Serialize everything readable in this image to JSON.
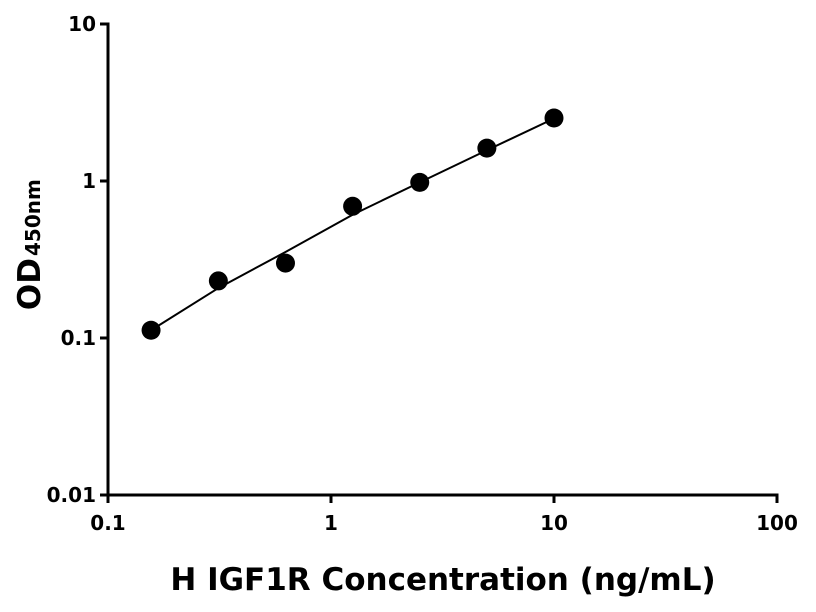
{
  "chart_data": {
    "type": "scatter",
    "x_label": "H IGF1R Concentration (ng/mL)",
    "y_label": "OD",
    "y_label_subscript": "450nm",
    "x": [
      0.156,
      0.3125,
      0.625,
      1.25,
      2.5,
      5,
      10
    ],
    "values": [
      0.112,
      0.231,
      0.3,
      0.69,
      0.98,
      1.62,
      2.52
    ],
    "color": "#000000",
    "fit": {
      "x": [
        0.156,
        0.3125,
        0.625,
        1.25,
        2.5,
        5,
        10
      ],
      "values": [
        0.112,
        0.208,
        0.353,
        0.61,
        0.98,
        1.57,
        2.5
      ],
      "color": "#000000"
    },
    "xscale": "log",
    "yscale": "log",
    "xlim": [
      0.1,
      100
    ],
    "ylim": [
      0.01,
      10
    ],
    "xticks": [
      0.1,
      1,
      10,
      100
    ],
    "yticks": [
      0.01,
      0.1,
      1,
      10
    ],
    "grid": false
  }
}
